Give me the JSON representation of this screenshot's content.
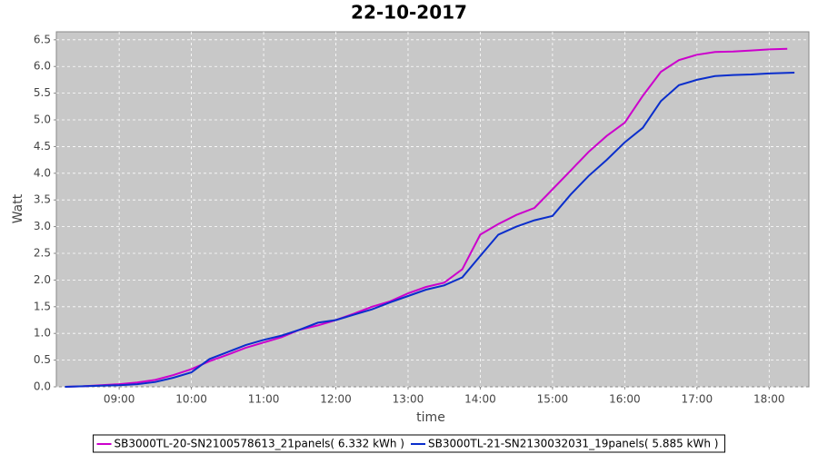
{
  "chart_data": {
    "type": "line",
    "title": "22-10-2017",
    "x_label": "time",
    "y_label": "Watt",
    "x": [
      8.25,
      8.5,
      8.75,
      9,
      9.25,
      9.5,
      9.75,
      10,
      10.25,
      10.5,
      10.75,
      11,
      11.25,
      11.5,
      11.75,
      12,
      12.25,
      12.5,
      12.75,
      13,
      13.25,
      13.5,
      13.75,
      14,
      14.25,
      14.5,
      14.75,
      15,
      15.25,
      15.5,
      15.75,
      16,
      16.25,
      16.5,
      16.75,
      17,
      17.25,
      17.5,
      17.75,
      18,
      18.25,
      18.35
    ],
    "series": [
      {
        "name": "SB3000TL-20-SN2100578613_21panels( 6.332 kWh )",
        "color": "#cc00cc",
        "values": [
          0,
          0.01,
          0.03,
          0.05,
          0.08,
          0.13,
          0.22,
          0.33,
          0.48,
          0.6,
          0.73,
          0.83,
          0.93,
          1.07,
          1.15,
          1.25,
          1.37,
          1.5,
          1.6,
          1.75,
          1.87,
          1.95,
          2.2,
          2.85,
          3.05,
          3.22,
          3.35,
          3.7,
          4.05,
          4.4,
          4.7,
          4.95,
          5.45,
          5.9,
          6.12,
          6.22,
          6.27,
          6.28,
          6.3,
          6.32,
          6.33,
          null
        ]
      },
      {
        "name": "SB3000TL-21-SN2130032031_19panels( 5.885 kWh )",
        "color": "#0a2ecc",
        "values": [
          0,
          0.01,
          0.02,
          0.03,
          0.05,
          0.09,
          0.17,
          0.27,
          0.52,
          0.65,
          0.78,
          0.88,
          0.96,
          1.07,
          1.2,
          1.25,
          1.35,
          1.45,
          1.58,
          1.7,
          1.82,
          1.9,
          2.05,
          2.45,
          2.85,
          3.0,
          3.12,
          3.2,
          3.6,
          3.95,
          4.25,
          4.58,
          4.85,
          5.35,
          5.65,
          5.75,
          5.82,
          5.84,
          5.85,
          5.87,
          5.88,
          5.885
        ]
      }
    ],
    "xlim": [
      8.13,
      18.55
    ],
    "xticks": [
      {
        "value": 9,
        "label": "09:00"
      },
      {
        "value": 10,
        "label": "10:00"
      },
      {
        "value": 11,
        "label": "11:00"
      },
      {
        "value": 12,
        "label": "12:00"
      },
      {
        "value": 13,
        "label": "13:00"
      },
      {
        "value": 14,
        "label": "14:00"
      },
      {
        "value": 15,
        "label": "15:00"
      },
      {
        "value": 16,
        "label": "16:00"
      },
      {
        "value": 17,
        "label": "17:00"
      },
      {
        "value": 18,
        "label": "18:00"
      }
    ],
    "ylim": [
      0,
      6.65
    ],
    "yticks": [
      {
        "value": 0,
        "label": "0.0"
      },
      0.5,
      {
        "value": 1,
        "label": "1.0"
      },
      1.5,
      {
        "value": 2,
        "label": "2.0"
      },
      2.5,
      {
        "value": 3,
        "label": "3.0"
      },
      3.5,
      {
        "value": 4,
        "label": "4.0"
      },
      4.5,
      {
        "value": 5,
        "label": "5.0"
      },
      5.5,
      {
        "value": 6,
        "label": "6.0"
      },
      6.5
    ],
    "grid": true,
    "legend": "bottom"
  }
}
